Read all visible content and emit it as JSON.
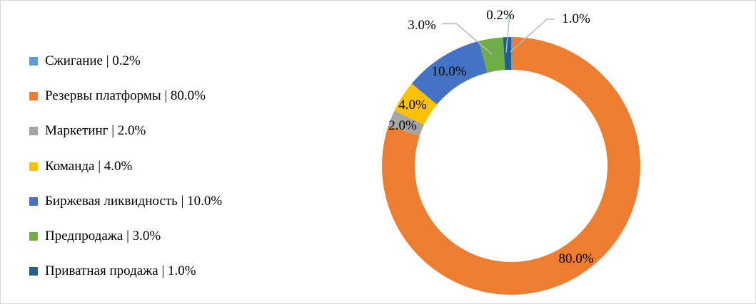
{
  "chart_data": {
    "type": "pie",
    "subtype": "donut",
    "title": "",
    "legend_position": "left",
    "series": [
      {
        "name": "Сжигание",
        "value": 0.2,
        "label": "0.2%",
        "legend": "Сжигание | 0.2%",
        "color": "#5b9bd5"
      },
      {
        "name": "Резервы платформы",
        "value": 80.0,
        "label": "80.0%",
        "legend": "Резервы платформы | 80.0%",
        "color": "#ed7d31"
      },
      {
        "name": "Маркетинг",
        "value": 2.0,
        "label": "2.0%",
        "legend": "Маркетинг | 2.0%",
        "color": "#a5a5a5"
      },
      {
        "name": "Команда",
        "value": 4.0,
        "label": "4.0%",
        "legend": "Команда | 4.0%",
        "color": "#ffc000"
      },
      {
        "name": "Биржевая ликвидность",
        "value": 10.0,
        "label": "10.0%",
        "legend": "Биржевая ликвидность | 10.0%",
        "color": "#4472c4"
      },
      {
        "name": "Предпродажа",
        "value": 3.0,
        "label": "3.0%",
        "legend": "Предпродажа | 3.0%",
        "color": "#70ad47"
      },
      {
        "name": "Приватная продажа",
        "value": 1.0,
        "label": "1.0%",
        "legend": "Приватная продажа | 1.0%",
        "color": "#255e91"
      }
    ]
  }
}
